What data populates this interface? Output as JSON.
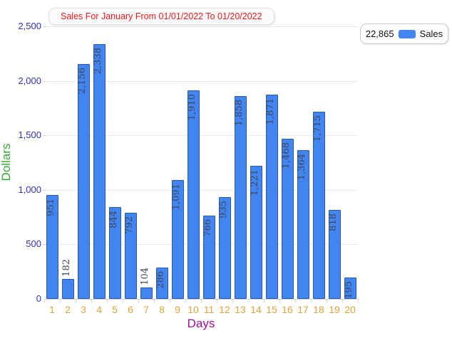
{
  "title": {
    "text": "Sales For January From 01/01/2022 To 01/20/2022",
    "color": "#f21b1b"
  },
  "legend": {
    "total": "22,865",
    "series_label": "Sales",
    "swatch_color": "#4285f4"
  },
  "axes": {
    "y": {
      "label": "Dollars",
      "label_color": "#38a838",
      "tick_color": "#3030c2",
      "tick_labels": [
        "0",
        "500",
        "1,000",
        "1,500",
        "2,000",
        "2,500"
      ],
      "tick_values": [
        0,
        500,
        1000,
        1500,
        2000,
        2500
      ]
    },
    "x": {
      "label": "Days",
      "label_color": "#9c109c",
      "tick_color": "#e0a43c"
    }
  },
  "chart_data": {
    "type": "bar",
    "title": "Sales For January From 01/01/2022 To 01/20/2022",
    "xlabel": "Days",
    "ylabel": "Dollars",
    "series_name": "Sales",
    "series_total": "22,865",
    "categories": [
      "1",
      "2",
      "3",
      "4",
      "5",
      "6",
      "7",
      "8",
      "9",
      "10",
      "11",
      "12",
      "13",
      "14",
      "15",
      "16",
      "17",
      "18",
      "19",
      "20"
    ],
    "values": [
      951,
      182,
      2156,
      2338,
      844,
      792,
      104,
      286,
      1091,
      1910,
      766,
      935,
      1858,
      1221,
      1871,
      1468,
      1364,
      1715,
      818,
      195
    ],
    "value_labels": [
      "951",
      "182",
      "2,156",
      "2,338",
      "844",
      "792",
      "104",
      "286",
      "1,091",
      "1,910",
      "766",
      "935",
      "1,858",
      "1,221",
      "1,871",
      "1,468",
      "1,364",
      "1,715",
      "818",
      "195"
    ],
    "label_outside_indices": [
      1,
      6
    ],
    "ylim": [
      0,
      2500
    ],
    "ytick_interval": 500,
    "grid": true,
    "legend_position": "top-right",
    "bar_color": "#4385f0",
    "bar_border_color": "#2a59ae"
  }
}
